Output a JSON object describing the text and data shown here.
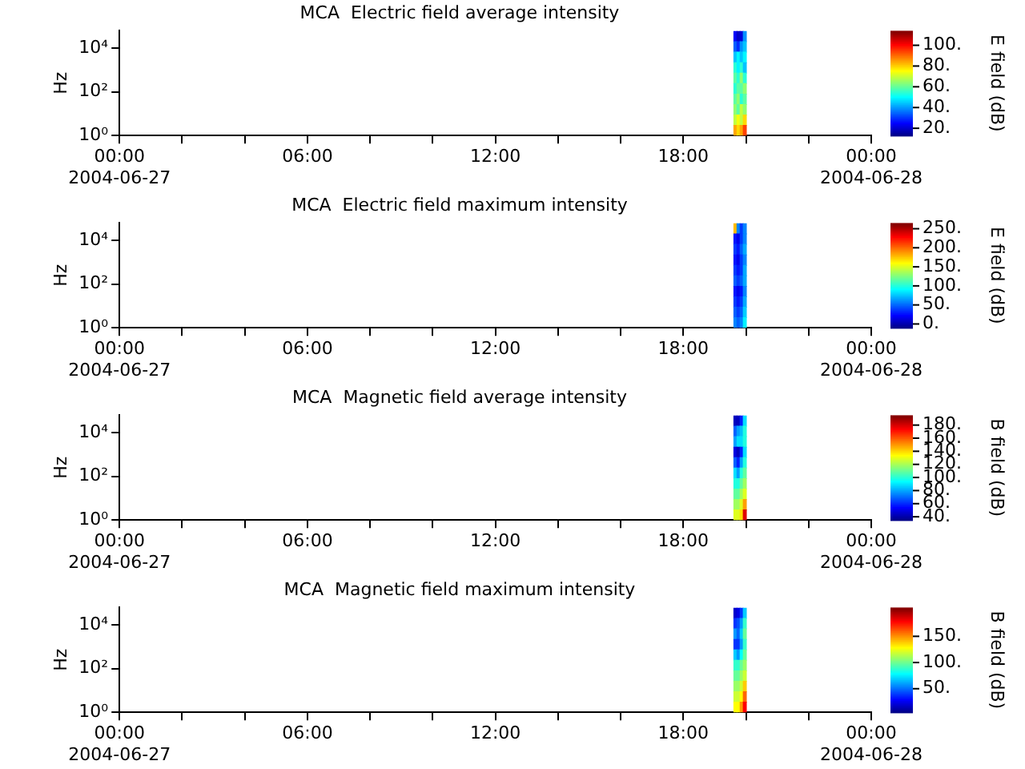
{
  "chart_data": [
    {
      "type": "heatmap",
      "title": "MCA  Electric field average intensity",
      "ylabel": "Hz",
      "clabel": "E field (dB)",
      "log": "y",
      "x": [
        19.65,
        19.75,
        19.85,
        19.95
      ],
      "xlim": [
        0,
        24
      ],
      "xticks": [
        {
          "value": 0,
          "label": "00:00\n2004-06-27"
        },
        {
          "value": 2,
          "label": null
        },
        {
          "value": 4,
          "label": null
        },
        {
          "value": 6,
          "label": "06:00"
        },
        {
          "value": 8,
          "label": null
        },
        {
          "value": 10,
          "label": null
        },
        {
          "value": 12,
          "label": "12:00"
        },
        {
          "value": 14,
          "label": null
        },
        {
          "value": 16,
          "label": null
        },
        {
          "value": 18,
          "label": "18:00"
        },
        {
          "value": 20,
          "label": null
        },
        {
          "value": 22,
          "label": null
        },
        {
          "value": 24,
          "label": "00:00\n2004-06-28"
        }
      ],
      "ylim": [
        1,
        63096
      ],
      "yticks": [
        {
          "value": 1,
          "label": "10⁰"
        },
        {
          "value": 100,
          "label": "10²"
        },
        {
          "value": 10000,
          "label": "10⁴"
        }
      ],
      "clim": [
        13,
        114
      ],
      "cticks": [
        {
          "value": 20,
          "label": "20."
        },
        {
          "value": 40,
          "label": "40."
        },
        {
          "value": 60,
          "label": "60."
        },
        {
          "value": 80,
          "label": "80."
        },
        {
          "value": 100,
          "label": "100."
        }
      ],
      "cells": [
        [
          25,
          20,
          22,
          40
        ],
        [
          35,
          30,
          40,
          45
        ],
        [
          45,
          50,
          45,
          50
        ],
        [
          55,
          50,
          55,
          45
        ],
        [
          60,
          55,
          65,
          55
        ],
        [
          55,
          60,
          60,
          65
        ],
        [
          60,
          65,
          55,
          60
        ],
        [
          65,
          60,
          70,
          65
        ],
        [
          70,
          75,
          70,
          80
        ],
        [
          85,
          80,
          85,
          95
        ]
      ]
    },
    {
      "type": "heatmap",
      "title": "MCA  Electric field maximum intensity",
      "ylabel": "Hz",
      "clabel": "E field (dB)",
      "log": "y",
      "x": [
        19.65,
        19.75,
        19.85,
        19.95
      ],
      "xlim": [
        0,
        24
      ],
      "xticks": [
        {
          "value": 0,
          "label": "00:00\n2004-06-27"
        },
        {
          "value": 2,
          "label": null
        },
        {
          "value": 4,
          "label": null
        },
        {
          "value": 6,
          "label": "06:00"
        },
        {
          "value": 8,
          "label": null
        },
        {
          "value": 10,
          "label": null
        },
        {
          "value": 12,
          "label": "12:00"
        },
        {
          "value": 14,
          "label": null
        },
        {
          "value": 16,
          "label": null
        },
        {
          "value": 18,
          "label": "18:00"
        },
        {
          "value": 20,
          "label": null
        },
        {
          "value": 22,
          "label": null
        },
        {
          "value": 24,
          "label": "00:00\n2004-06-28"
        }
      ],
      "ylim": [
        1,
        63096
      ],
      "yticks": [
        {
          "value": 1,
          "label": "10⁰"
        },
        {
          "value": 100,
          "label": "10²"
        },
        {
          "value": 10000,
          "label": "10⁴"
        }
      ],
      "clim": [
        -10,
        265
      ],
      "cticks": [
        {
          "value": 0,
          "label": "0."
        },
        {
          "value": 50,
          "label": "50."
        },
        {
          "value": 100,
          "label": "100."
        },
        {
          "value": 150,
          "label": "150."
        },
        {
          "value": 200,
          "label": "200."
        },
        {
          "value": 250,
          "label": "250."
        }
      ],
      "cells": [
        [
          180,
          60,
          40,
          60
        ],
        [
          30,
          20,
          40,
          60
        ],
        [
          40,
          30,
          50,
          70
        ],
        [
          30,
          20,
          40,
          60
        ],
        [
          40,
          30,
          40,
          70
        ],
        [
          50,
          40,
          50,
          70
        ],
        [
          30,
          20,
          30,
          60
        ],
        [
          40,
          30,
          40,
          70
        ],
        [
          50,
          40,
          50,
          80
        ],
        [
          60,
          50,
          60,
          90
        ]
      ]
    },
    {
      "type": "heatmap",
      "title": "MCA  Magnetic field average intensity",
      "ylabel": "Hz",
      "clabel": "B field (dB)",
      "log": "y",
      "x": [
        19.65,
        19.75,
        19.85,
        19.95
      ],
      "xlim": [
        0,
        24
      ],
      "xticks": [
        {
          "value": 0,
          "label": "00:00\n2004-06-27"
        },
        {
          "value": 2,
          "label": null
        },
        {
          "value": 4,
          "label": null
        },
        {
          "value": 6,
          "label": "06:00"
        },
        {
          "value": 8,
          "label": null
        },
        {
          "value": 10,
          "label": null
        },
        {
          "value": 12,
          "label": "12:00"
        },
        {
          "value": 14,
          "label": null
        },
        {
          "value": 16,
          "label": null
        },
        {
          "value": 18,
          "label": "18:00"
        },
        {
          "value": 20,
          "label": null
        },
        {
          "value": 22,
          "label": null
        },
        {
          "value": 24,
          "label": "00:00\n2004-06-28"
        }
      ],
      "ylim": [
        1,
        63096
      ],
      "yticks": [
        {
          "value": 1,
          "label": "10⁰"
        },
        {
          "value": 100,
          "label": "10²"
        },
        {
          "value": 10000,
          "label": "10⁴"
        }
      ],
      "clim": [
        35,
        195
      ],
      "cticks": [
        {
          "value": 40,
          "label": "40."
        },
        {
          "value": 60,
          "label": "60."
        },
        {
          "value": 80,
          "label": "80."
        },
        {
          "value": 100,
          "label": "100."
        },
        {
          "value": 120,
          "label": "120."
        },
        {
          "value": 140,
          "label": "140."
        },
        {
          "value": 160,
          "label": "160."
        },
        {
          "value": 180,
          "label": "180."
        }
      ],
      "cells": [
        [
          45,
          45,
          60,
          90
        ],
        [
          70,
          80,
          85,
          100
        ],
        [
          80,
          90,
          90,
          100
        ],
        [
          50,
          45,
          60,
          90
        ],
        [
          70,
          60,
          80,
          100
        ],
        [
          90,
          80,
          100,
          110
        ],
        [
          100,
          100,
          110,
          120
        ],
        [
          110,
          110,
          120,
          130
        ],
        [
          120,
          120,
          130,
          150
        ],
        [
          130,
          130,
          140,
          180
        ]
      ]
    },
    {
      "type": "heatmap",
      "title": "MCA  Magnetic field maximum intensity",
      "ylabel": "Hz",
      "clabel": "B field (dB)",
      "log": "y",
      "x": [
        19.65,
        19.75,
        19.85,
        19.95
      ],
      "xlim": [
        0,
        24
      ],
      "xticks": [
        {
          "value": 0,
          "label": "00:00\n2004-06-27"
        },
        {
          "value": 2,
          "label": null
        },
        {
          "value": 4,
          "label": null
        },
        {
          "value": 6,
          "label": "06:00"
        },
        {
          "value": 8,
          "label": null
        },
        {
          "value": 10,
          "label": null
        },
        {
          "value": 12,
          "label": "12:00"
        },
        {
          "value": 14,
          "label": null
        },
        {
          "value": 16,
          "label": null
        },
        {
          "value": 18,
          "label": "18:00"
        },
        {
          "value": 20,
          "label": null
        },
        {
          "value": 22,
          "label": null
        },
        {
          "value": 24,
          "label": "00:00\n2004-06-28"
        }
      ],
      "ylim": [
        1,
        63096
      ],
      "yticks": [
        {
          "value": 1,
          "label": "10⁰"
        },
        {
          "value": 100,
          "label": "10²"
        },
        {
          "value": 10000,
          "label": "10⁴"
        }
      ],
      "clim": [
        5,
        205
      ],
      "cticks": [
        {
          "value": 50,
          "label": "50."
        },
        {
          "value": 100,
          "label": "100."
        },
        {
          "value": 150,
          "label": "150."
        }
      ],
      "cells": [
        [
          20,
          25,
          40,
          70
        ],
        [
          40,
          45,
          60,
          90
        ],
        [
          60,
          50,
          70,
          100
        ],
        [
          40,
          40,
          60,
          90
        ],
        [
          70,
          60,
          80,
          100
        ],
        [
          90,
          90,
          100,
          110
        ],
        [
          100,
          100,
          110,
          120
        ],
        [
          110,
          110,
          120,
          140
        ],
        [
          120,
          120,
          130,
          160
        ],
        [
          130,
          130,
          150,
          180
        ]
      ]
    }
  ]
}
